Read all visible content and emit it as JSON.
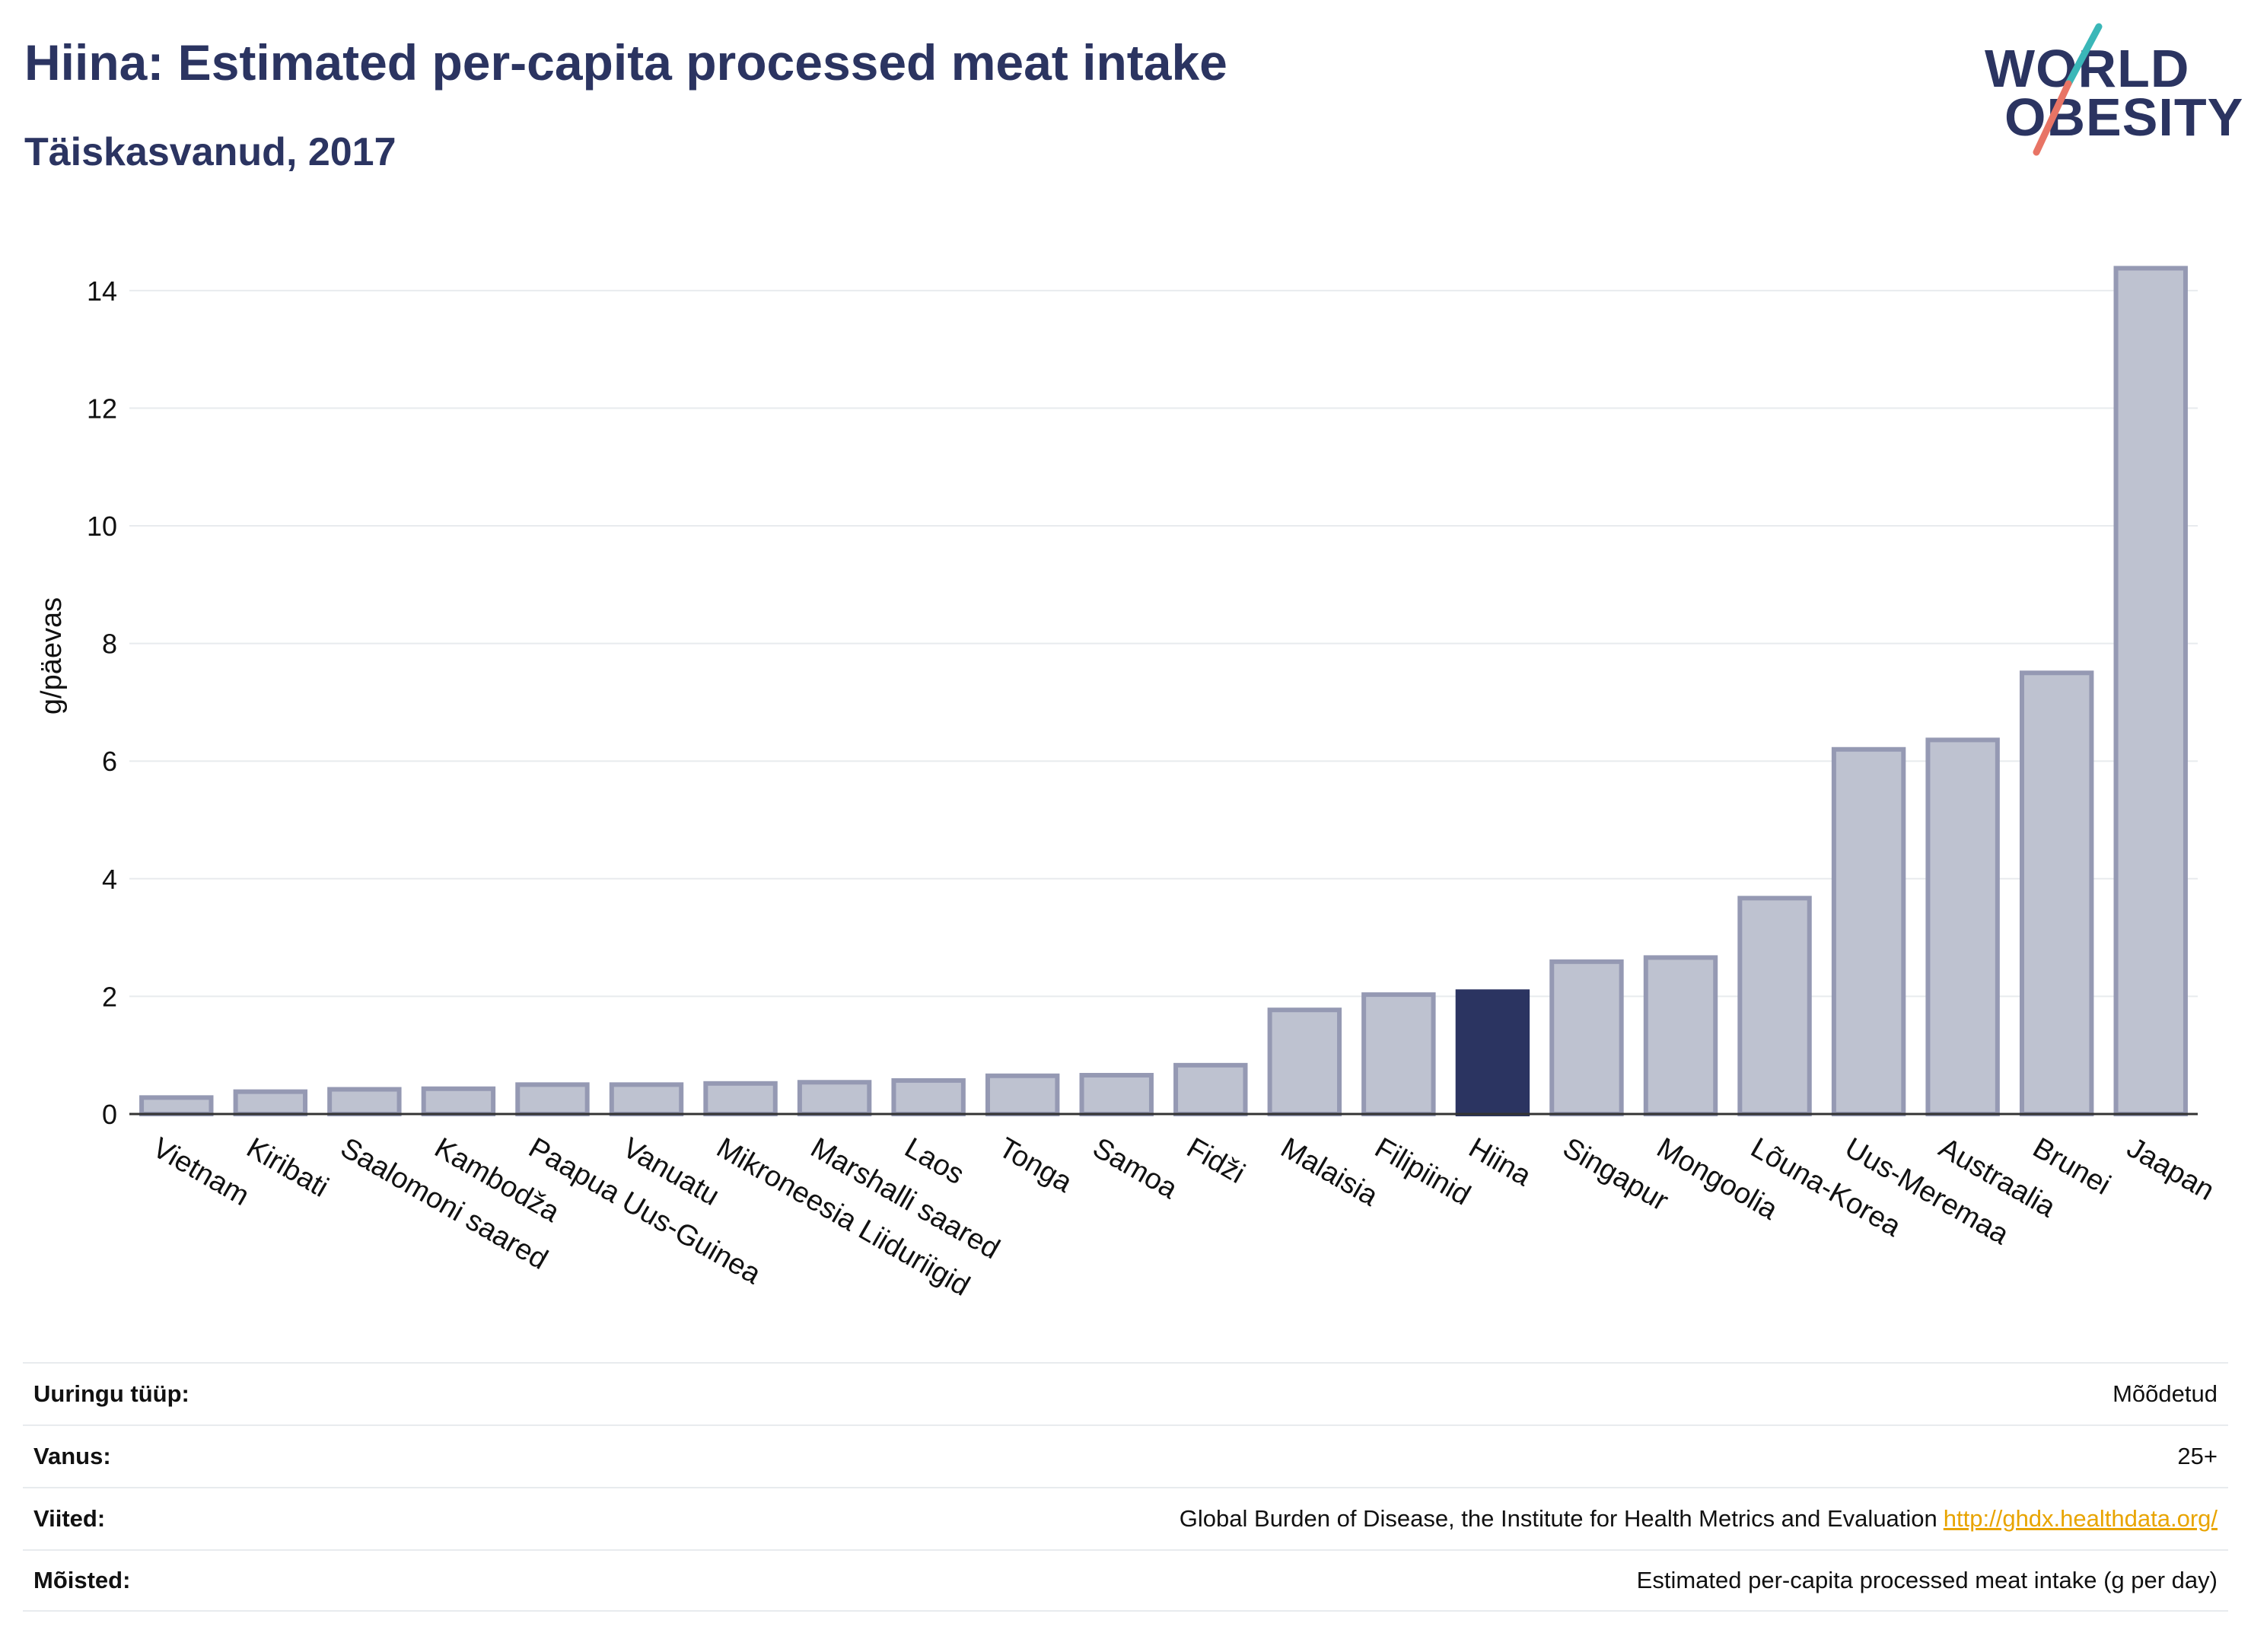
{
  "header": {
    "title": "Hiina: Estimated per-capita processed meat intake",
    "subtitle": "Täiskasvanud, 2017"
  },
  "logo": {
    "line1": "WORLD",
    "line2": "OBESITY",
    "colors": {
      "text": "#2b3461",
      "slash_top": "#3ab7b8",
      "slash_bottom": "#e87465"
    }
  },
  "chart_data": {
    "type": "bar",
    "ylabel": "g/päevas",
    "ylim": [
      0,
      14.8
    ],
    "yticks": [
      0,
      2,
      4,
      6,
      8,
      10,
      12,
      14
    ],
    "grid": true,
    "highlight": "Hiina",
    "colors": {
      "bar": "#bec2d0",
      "bar_border": "#9599b3",
      "highlight": "#2b3461",
      "grid": "#e8ebee"
    },
    "categories": [
      "Vietnam",
      "Kiribati",
      "Saalomoni saared",
      "Kambodža",
      "Paapua Uus-Guinea",
      "Vanuatu",
      "Mikroneesia Liiduriigid",
      "Marshalli saared",
      "Laos",
      "Tonga",
      "Samoa",
      "Fidži",
      "Malaisia",
      "Filipiinid",
      "Hiina",
      "Singapur",
      "Mongoolia",
      "Lõuna-Korea",
      "Uus-Meremaa",
      "Austraalia",
      "Brunei",
      "Jaapan"
    ],
    "values": [
      0.28,
      0.38,
      0.42,
      0.43,
      0.5,
      0.5,
      0.52,
      0.54,
      0.57,
      0.65,
      0.66,
      0.83,
      1.77,
      2.03,
      2.08,
      2.59,
      2.66,
      3.67,
      6.2,
      6.36,
      7.5,
      14.38
    ]
  },
  "info": {
    "rows": [
      {
        "label": "Uuringu tüüp:",
        "value": "Mõõdetud"
      },
      {
        "label": "Vanus:",
        "value": "25+"
      },
      {
        "label": "Viited:",
        "value": "Global Burden of Disease, the Institute for Health Metrics and Evaluation",
        "link": "http://ghdx.healthdata.org/"
      },
      {
        "label": "Mõisted:",
        "value": "Estimated per-capita processed meat intake (g per day)"
      }
    ]
  }
}
